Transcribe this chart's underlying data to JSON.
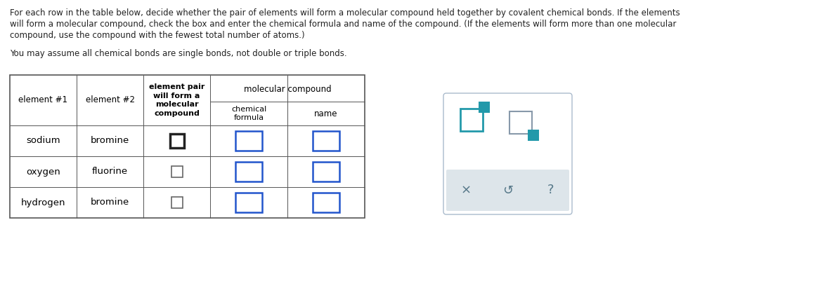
{
  "title_line1": "For each row in the table below, decide whether the pair of elements will form a molecular compound held together by covalent chemical bonds. If the elements",
  "title_line2": "will form a molecular compound, check the box and enter the chemical formula and name of the compound. (If the elements will form more than one molecular",
  "title_line3": "compound, use the compound with the fewest total number of atoms.)",
  "subtitle_text": "You may assume all chemical bonds are single bonds, not double or triple bonds.",
  "bg_color": "#ffffff",
  "table_border_color": "#555555",
  "rows": [
    [
      "sodium",
      "bromine"
    ],
    [
      "oxygen",
      "fluorine"
    ],
    [
      "hydrogen",
      "bromine"
    ]
  ],
  "widget_teal": "#2299aa",
  "widget_gray_border": "#8899aa",
  "widget_box_border": "#aabbcc",
  "widget_band_bg": "#dde5ea",
  "widget_icon_color": "#557788"
}
